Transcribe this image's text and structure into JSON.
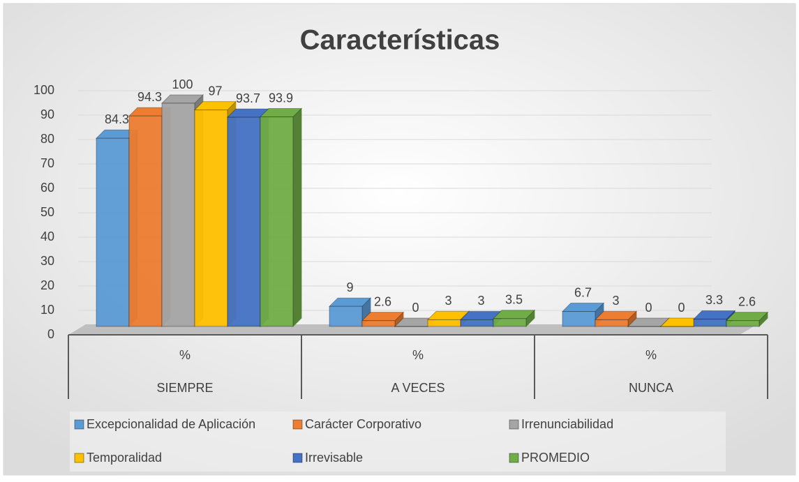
{
  "chart_data": {
    "type": "bar3d",
    "title": "Características",
    "categories": [
      "SIEMPRE",
      "A VECES",
      "NUNCA"
    ],
    "subcategories": [
      "%",
      "%",
      "%"
    ],
    "series": [
      {
        "name": "Excepcionalidad de Aplicación",
        "color": "#5b9bd5",
        "values": [
          84.3,
          9,
          6.7
        ]
      },
      {
        "name": "Carácter Corporativo",
        "color": "#ed7d31",
        "values": [
          94.3,
          2.6,
          3
        ]
      },
      {
        "name": "Irrenunciabilidad",
        "color": "#a5a5a5",
        "values": [
          100,
          0,
          0
        ]
      },
      {
        "name": "Temporalidad",
        "color": "#ffc000",
        "values": [
          97,
          3,
          0
        ]
      },
      {
        "name": "Irrevisable",
        "color": "#4472c4",
        "values": [
          93.7,
          3,
          3.3
        ]
      },
      {
        "name": "PROMEDIO",
        "color": "#70ad47",
        "values": [
          93.9,
          3.5,
          2.6
        ]
      }
    ],
    "ylim": [
      0,
      100
    ],
    "yticks": [
      0,
      10,
      20,
      30,
      40,
      50,
      60,
      70,
      80,
      90,
      100
    ],
    "grid": true,
    "legend": "bottom"
  }
}
